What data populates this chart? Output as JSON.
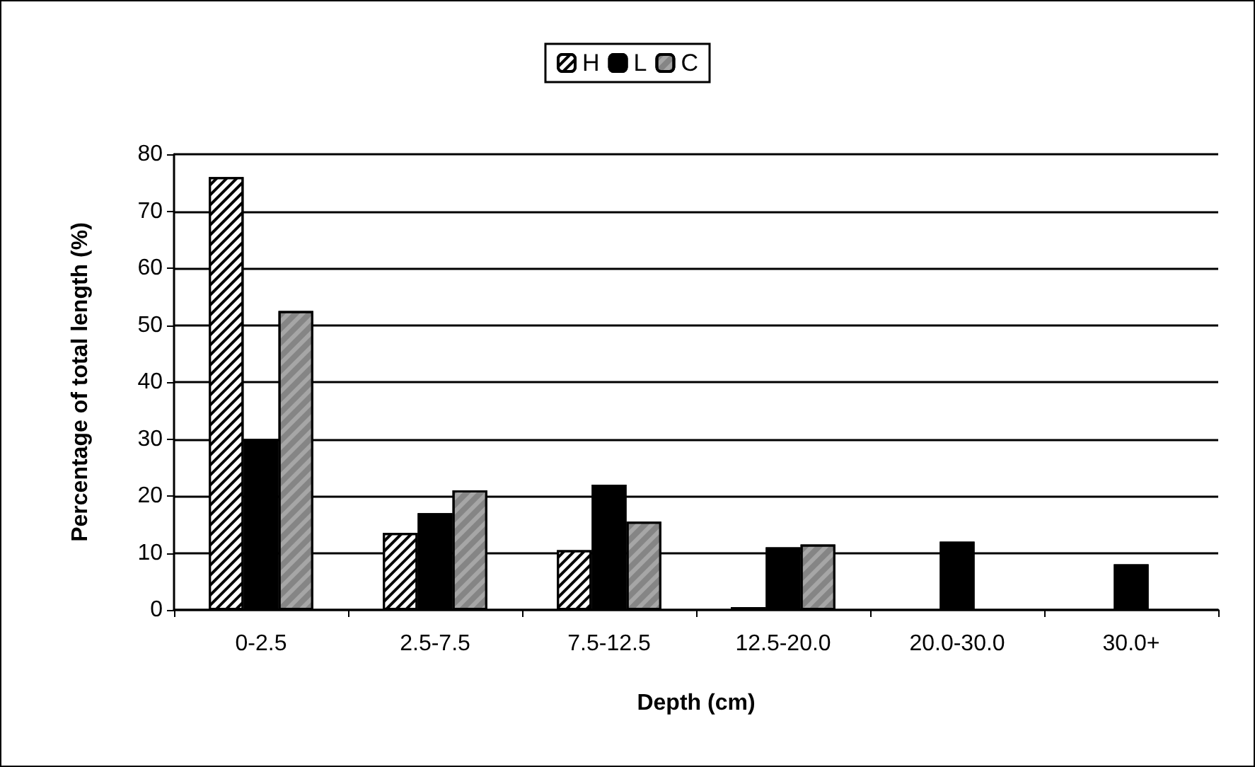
{
  "chart_data": {
    "type": "bar",
    "xlabel": "Depth (cm)",
    "ylabel": "Percentage of total length (%)",
    "categories": [
      "0-2.5",
      "2.5-7.5",
      "7.5-12.5",
      "12.5-20.0",
      "20.0-30.0",
      "30.0+"
    ],
    "series": [
      {
        "name": "H",
        "color": "#ffffff",
        "values": [
          76,
          13.5,
          10.5,
          0.5,
          null,
          null
        ]
      },
      {
        "name": "L",
        "color": "#000000",
        "values": [
          30,
          17,
          22,
          11,
          12,
          8
        ]
      },
      {
        "name": "C",
        "color": "#a6a6a6",
        "values": [
          52.5,
          21,
          15.5,
          11.5,
          null,
          null
        ]
      }
    ],
    "ylim": [
      0,
      80
    ],
    "yticks": [
      0,
      10,
      20,
      30,
      40,
      50,
      60,
      70,
      80
    ],
    "grid": "y",
    "legend": "top"
  }
}
